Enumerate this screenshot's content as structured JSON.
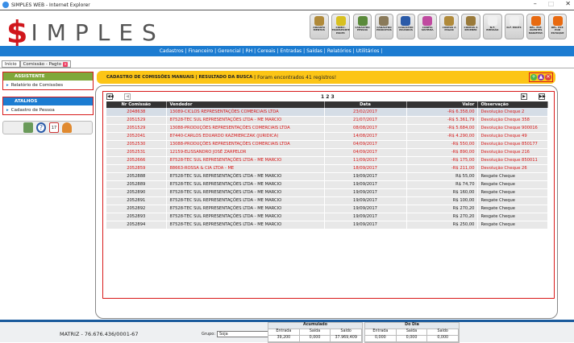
{
  "window": {
    "title": "SIMPLES WEB - Internet Explorer",
    "controls": [
      "–",
      "□",
      "✕"
    ]
  },
  "logo": {
    "dollar": "$",
    "text": "IMPLES"
  },
  "toolbar": [
    {
      "label": "ADIANTA MENTOS",
      "color": "#b08a3a"
    },
    {
      "label": "COMIC. TRANSPORTE EXCET.",
      "color": "#d8c020"
    },
    {
      "label": "CADASTRO PESSOA",
      "color": "#5a8a3a"
    },
    {
      "label": "CADASTRO PRODUTOS",
      "color": "#8a7a5a"
    },
    {
      "label": "CADASTRO USUÁRIOS",
      "color": "#2a5aa8"
    },
    {
      "label": "CONFIG SISTEMA",
      "color": "#c04aa0"
    },
    {
      "label": "CONTAS A PAGAR",
      "color": "#b08a3a"
    },
    {
      "label": "CONTAS A RECEBER",
      "color": "#9a7a3a"
    },
    {
      "label": "N.F. EMISSÃO",
      "color": "#f0f0f0"
    },
    {
      "label": "N.F. EXCET.",
      "color": "#f0f0f0"
    },
    {
      "label": "REL. EST. AGENTES MANIFEST.",
      "color": "#e86a10"
    },
    {
      "label": "REL. EST. POR ESTOQUE",
      "color": "#e86a10"
    }
  ],
  "nav": [
    "Cadastros |",
    "Financeiro |",
    "Gerencial |",
    "RH |",
    "Cereais |",
    "Entradas |",
    "Saídas |",
    "Relatórios |",
    "Utilitários |"
  ],
  "tabs": [
    {
      "label": "Início"
    },
    {
      "label": "Comissão - Pagto"
    }
  ],
  "sidebar": {
    "assistente": {
      "title": "ASSISTENTE",
      "color": "#7fa83a",
      "items": [
        "Relatório de Comissões"
      ]
    },
    "atalhos": {
      "title": "ATALHOS",
      "color": "#1c7cd1",
      "items": [
        "Cadastro de Pessoa"
      ]
    },
    "icons": [
      "calculator-icon",
      "help-icon",
      "calendar-icon",
      "user-icon"
    ]
  },
  "banner": {
    "title": "CADASTRO DE COMISSÕES MANUAIS | RESULTADO DA BUSCA |",
    "message": "Foram encontrados 41 registros!"
  },
  "grid": {
    "pages": "1 2 3",
    "columns": [
      "Nr Comissão",
      "Vendedor",
      "Data",
      "Valor",
      "Observação"
    ],
    "rows": [
      [
        "2048638",
        "13089-CICLOS REPRESENTAÇÕES COMERCIAIS LTDA",
        "23/02/2017",
        "-R$ 6.358,00",
        "Devolução Cheque 2"
      ],
      [
        "2051529",
        "87528-TEC SUL REPRESENTAÇÕES LTDA - ME MARCIO",
        "21/07/2017",
        "-R$ 5.361,79",
        "Devolução Cheque 358"
      ],
      [
        "2051529",
        "13088-PRODUÇÕES REPRESENTAÇÕES COMERCIAIS LTDA",
        "08/08/2017",
        "-R$ 5.684,00",
        "Devolução Cheque 900016"
      ],
      [
        "2052041",
        "87440-CARLOS EDUARDO KAZMIERCZAK (JURIDICA)",
        "14/08/2017",
        "-R$ 4.290,00",
        "Devolução Cheque 49"
      ],
      [
        "2052530",
        "13088-PRODUÇÕES REPRESENTAÇÕES COMERCIAIS LTDA",
        "04/09/2017",
        "-R$ 550,00",
        "Devolução Cheque 850177"
      ],
      [
        "2052531",
        "12159-ELISSANDRO JOSÉ ZARPELOR",
        "04/09/2017",
        "-R$ 890,00",
        "Devolução Cheque 216"
      ],
      [
        "2052666",
        "87528-TEC SUL REPRESENTAÇÕES LTDA - ME MARCIO",
        "11/09/2017",
        "-R$ 175,00",
        "Devolução Cheque 850011"
      ],
      [
        "2052859",
        "88663-ROSSA & CIA LTDA - ME",
        "18/09/2017",
        "-R$ 211,00",
        "Devolução Cheque 26"
      ],
      [
        "2052888",
        "87528-TEC SUL REPRESENTAÇÕES LTDA - ME MARCIO",
        "19/09/2017",
        "R$ 55,00",
        "Resgate Cheque"
      ],
      [
        "2052889",
        "87528-TEC SUL REPRESENTAÇÕES LTDA - ME MARCIO",
        "19/09/2017",
        "R$ 74,70",
        "Resgate Cheque"
      ],
      [
        "2052890",
        "87528-TEC SUL REPRESENTAÇÕES LTDA - ME MARCIO",
        "19/09/2017",
        "R$ 160,00",
        "Resgate Cheque"
      ],
      [
        "2052891",
        "87528-TEC SUL REPRESENTAÇÕES LTDA - ME MARCIO",
        "19/09/2017",
        "R$ 100,00",
        "Resgate Cheque"
      ],
      [
        "2052892",
        "87528-TEC SUL REPRESENTAÇÕES LTDA - ME MARCIO",
        "19/09/2017",
        "R$ 270,20",
        "Resgate Cheque"
      ],
      [
        "2052893",
        "87528-TEC SUL REPRESENTAÇÕES LTDA - ME MARCIO",
        "19/09/2017",
        "R$ 270,20",
        "Resgate Cheque"
      ],
      [
        "2052894",
        "87528-TEC SUL REPRESENTAÇÕES LTDA - ME MARCIO",
        "19/09/2017",
        "R$ 250,00",
        "Resgate Cheque"
      ]
    ],
    "red_rows": 8,
    "selected_row": 0
  },
  "footer": {
    "matriz": "MATRIZ - 76.676.436/0001-67",
    "grupo_label": "Grupo:",
    "grupo_value": "Soja",
    "acumulado": {
      "title": "Acumulado",
      "cols": [
        "Entrada",
        "Saída",
        "Saldo"
      ],
      "values": [
        "39,200",
        "0,000",
        "37.969,409"
      ]
    },
    "dodia": {
      "title": "Do Dia",
      "cols": [
        "Entrada",
        "Saída",
        "Saldo"
      ],
      "values": [
        "0,000",
        "0,000",
        "0,000"
      ]
    }
  }
}
